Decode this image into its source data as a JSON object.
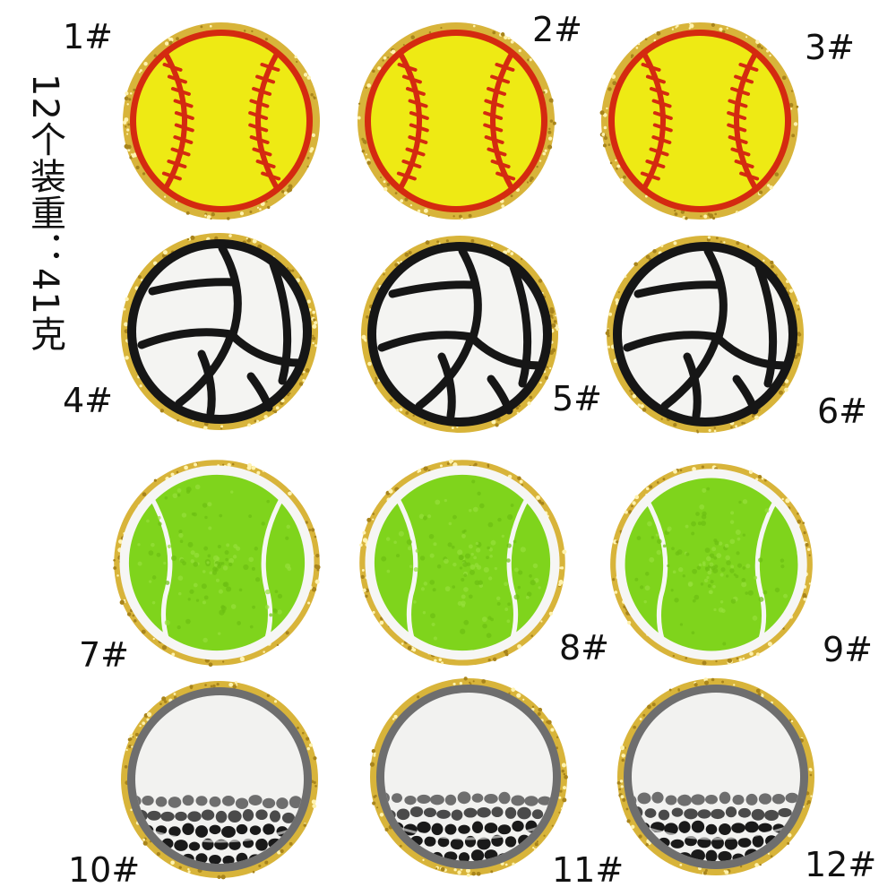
{
  "side_note": "12个装重：41克",
  "colors": {
    "gold_border": "#d8b43a",
    "gold_dark": "#a8841c",
    "softball_fill": "#eeea14",
    "softball_seam": "#d42a10",
    "volleyball_fill": "#f4f4f2",
    "volleyball_line": "#161616",
    "tennis_fill": "#7fd41c",
    "tennis_ring": "#f6f6f4",
    "golf_fill": "#f2f2f0",
    "golf_ring": "#6e6e6e",
    "golf_dimple": "#1a1a1a"
  },
  "patches": [
    {
      "label": "1#",
      "kind": "softball-patch"
    },
    {
      "label": "2#",
      "kind": "softball-patch"
    },
    {
      "label": "3#",
      "kind": "softball-patch"
    },
    {
      "label": "4#",
      "kind": "volleyball-patch"
    },
    {
      "label": "5#",
      "kind": "volleyball-patch"
    },
    {
      "label": "6#",
      "kind": "volleyball-patch"
    },
    {
      "label": "7#",
      "kind": "tennis-ball-patch"
    },
    {
      "label": "8#",
      "kind": "tennis-ball-patch"
    },
    {
      "label": "9#",
      "kind": "tennis-ball-patch"
    },
    {
      "label": "10#",
      "kind": "golf-ball-patch"
    },
    {
      "label": "11#",
      "kind": "golf-ball-patch"
    },
    {
      "label": "12#",
      "kind": "golf-ball-patch"
    }
  ]
}
